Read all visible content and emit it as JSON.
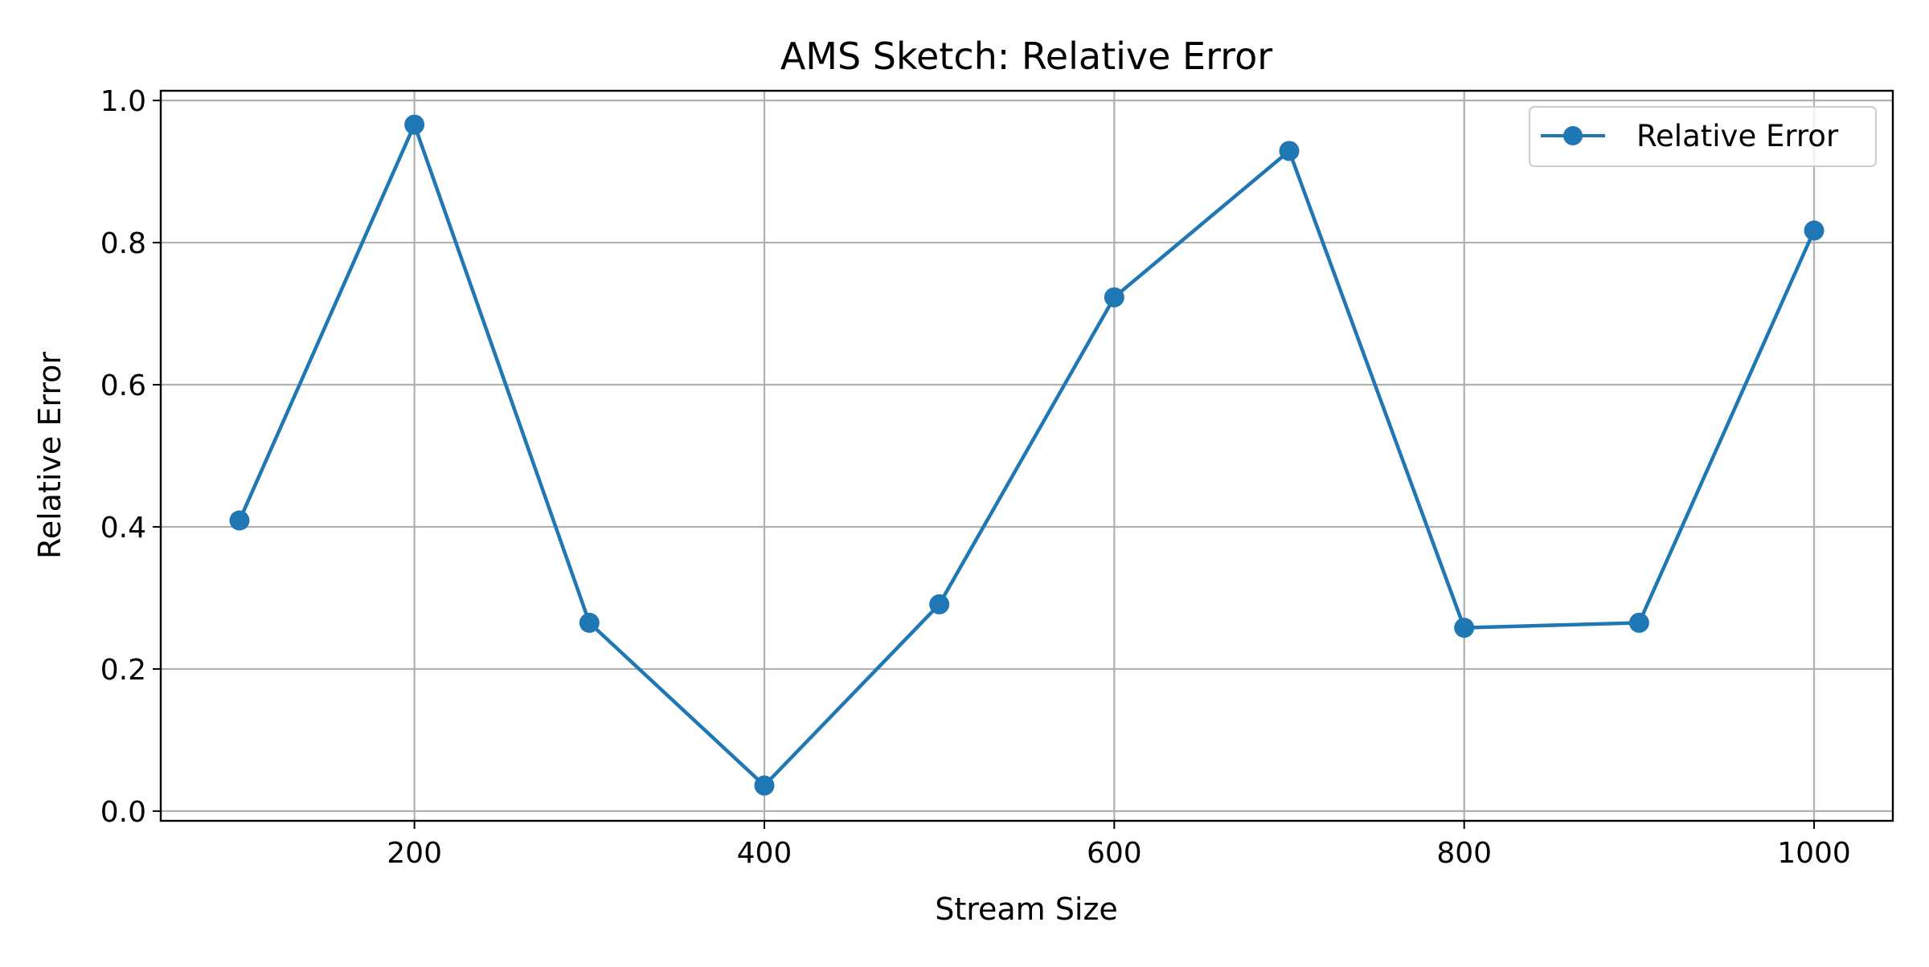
{
  "chart_data": {
    "type": "line",
    "title": "AMS Sketch: Relative Error",
    "xlabel": "Stream Size",
    "ylabel": "Relative Error",
    "x": [
      100,
      200,
      300,
      400,
      500,
      600,
      700,
      800,
      900,
      1000
    ],
    "series": [
      {
        "name": "Relative Error",
        "values": [
          0.409,
          0.966,
          0.265,
          0.036,
          0.291,
          0.723,
          0.929,
          0.258,
          0.265,
          0.817
        ],
        "color": "#1f77b4",
        "marker": "circle"
      }
    ],
    "xlim": [
      55,
      1045
    ],
    "ylim": [
      -0.0137,
      1.0137
    ],
    "xticks": [
      200,
      400,
      600,
      800,
      1000
    ],
    "xtick_labels": [
      "200",
      "400",
      "600",
      "800",
      "1000"
    ],
    "yticks": [
      0.0,
      0.2,
      0.4,
      0.6,
      0.8,
      1.0
    ],
    "ytick_labels": [
      "0.0",
      "0.2",
      "0.4",
      "0.6",
      "0.8",
      "1.0"
    ],
    "grid": true,
    "legend": "upper right"
  }
}
